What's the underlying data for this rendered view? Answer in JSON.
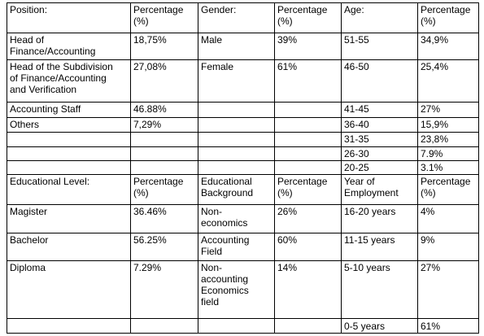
{
  "table": {
    "rows": [
      [
        "Position:",
        "Percentage\n(%)",
        "Gender:",
        "Percentage\n(%)",
        "Age:",
        "Percentage\n(%)"
      ],
      [
        "Head of\nFinance/Accounting",
        "18,75%",
        "Male",
        "39%",
        "51-55",
        "34,9%"
      ],
      [
        "Head of the Subdivision\nof Finance/Accounting\nand Verification",
        "27,08%",
        "Female",
        "61%",
        "46-50",
        "25,4%"
      ],
      [
        "Accounting Staff",
        "46.88%",
        null,
        null,
        "41-45",
        "27%"
      ],
      [
        "Others",
        "7,29%",
        null,
        null,
        "36-40",
        "15,9%"
      ],
      [
        null,
        null,
        null,
        null,
        "31-35",
        "23,8%"
      ],
      [
        null,
        null,
        null,
        null,
        "26-30",
        "7.9%"
      ],
      [
        null,
        null,
        null,
        null,
        "20-25",
        "3.1%"
      ],
      [
        "Educational Level:",
        "Percentage\n(%)",
        "Educational\nBackground",
        "Percentage\n(%)",
        "Year of\nEmployment",
        "Percentage\n(%)"
      ],
      [
        "Magister",
        "36.46%",
        "Non-\neconomics",
        "26%",
        "16-20 years",
        "4%"
      ],
      [
        "Bachelor",
        "56.25%",
        "Accounting\nField",
        "60%",
        "11-15 years",
        "9%"
      ],
      [
        "Diploma",
        "7.29%",
        "Non-\naccounting\nEconomics\nfield",
        "14%",
        "5-10 years",
        "27%"
      ],
      [
        null,
        null,
        null,
        null,
        "0-5 years",
        "61%"
      ]
    ]
  }
}
